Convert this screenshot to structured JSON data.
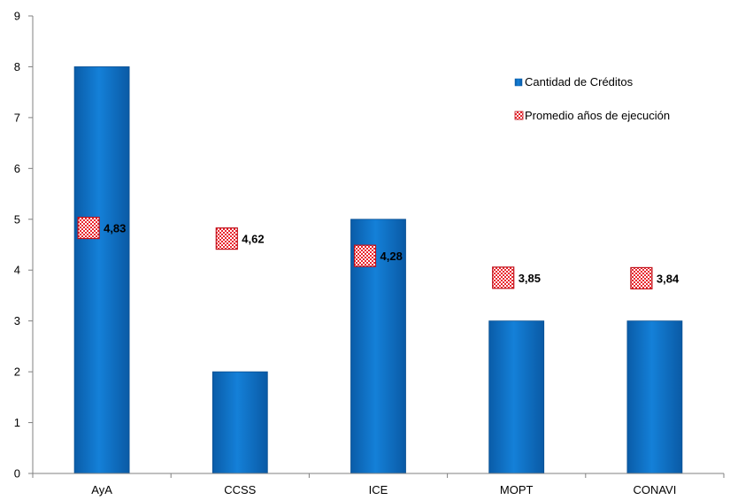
{
  "chart_data": {
    "type": "bar",
    "categories": [
      "AyA",
      "CCSS",
      "ICE",
      "MOPT",
      "CONAVI"
    ],
    "series": [
      {
        "name": "Cantidad de Créditos",
        "type": "bar",
        "values": [
          8,
          2,
          5,
          3,
          3
        ],
        "color": "#0E6FC0"
      },
      {
        "name": "Promedio años de ejecución",
        "type": "scatter",
        "values": [
          4.83,
          4.62,
          4.28,
          3.85,
          3.84
        ],
        "labels": [
          "4,83",
          "4,62",
          "4,28",
          "3,85",
          "3,84"
        ],
        "color": "#E8262E"
      }
    ],
    "yticks": [
      "0",
      "1",
      "2",
      "3",
      "4",
      "5",
      "6",
      "7",
      "8",
      "9"
    ],
    "ylim": [
      0,
      9
    ],
    "grid": false,
    "legend_position": "top-right"
  }
}
